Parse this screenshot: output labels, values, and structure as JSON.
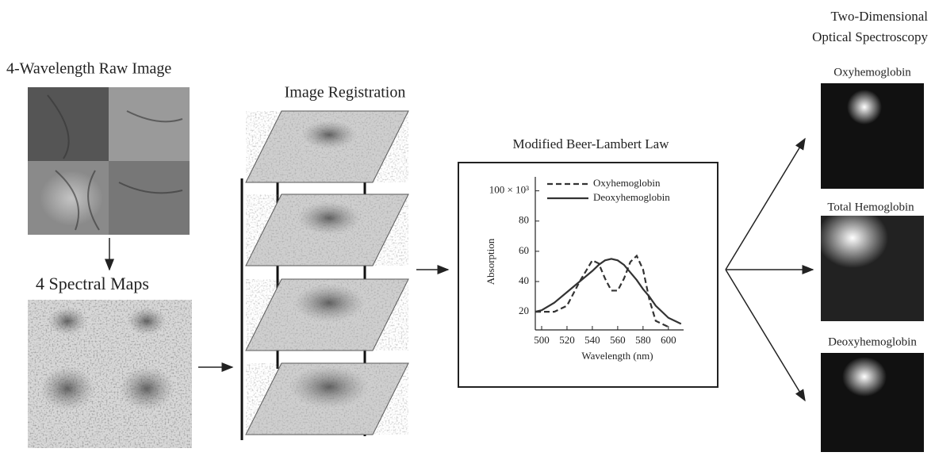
{
  "labels": {
    "two_d_title_1": "Two-Dimensional",
    "two_d_title_2": "Optical Spectroscopy",
    "raw_image": "4-Wavelength Raw Image",
    "spectral_maps": "4 Spectral Maps",
    "registration": "Image Registration",
    "oxy_map": "Oxyhemoglobin",
    "total_map": "Total Hemoglobin",
    "deoxy_map": "Deoxyhemoglobin"
  },
  "chart_data": {
    "type": "line",
    "title": "Modified Beer-Lambert Law",
    "xlabel": "Wavelength (nm)",
    "ylabel": "Absorption",
    "x": [
      495,
      500,
      510,
      520,
      530,
      540,
      545,
      550,
      555,
      560,
      565,
      570,
      575,
      580,
      585,
      590,
      600,
      610
    ],
    "series": [
      {
        "name": "Oxyhemoglobin",
        "color": "#333333",
        "line_style": "dashed",
        "values": [
          20,
          20,
          20,
          24,
          40,
          54,
          52,
          42,
          34,
          34,
          42,
          53,
          57,
          48,
          28,
          14,
          10,
          null
        ]
      },
      {
        "name": "Deoxyhemoglobin",
        "color": "#333333",
        "line_style": "solid",
        "values": [
          20,
          21,
          26,
          33,
          40,
          47,
          51,
          54,
          55,
          54,
          51,
          46,
          41,
          35,
          30,
          24,
          16,
          12
        ]
      }
    ],
    "xlim": [
      495,
      612
    ],
    "ylim": [
      8,
      104
    ],
    "xticks": [
      500,
      520,
      540,
      560,
      580,
      600
    ],
    "yticks": [
      20,
      40,
      60,
      80,
      {
        "value": 100,
        "label": "100 × 10³"
      }
    ],
    "legend": "top-right"
  }
}
